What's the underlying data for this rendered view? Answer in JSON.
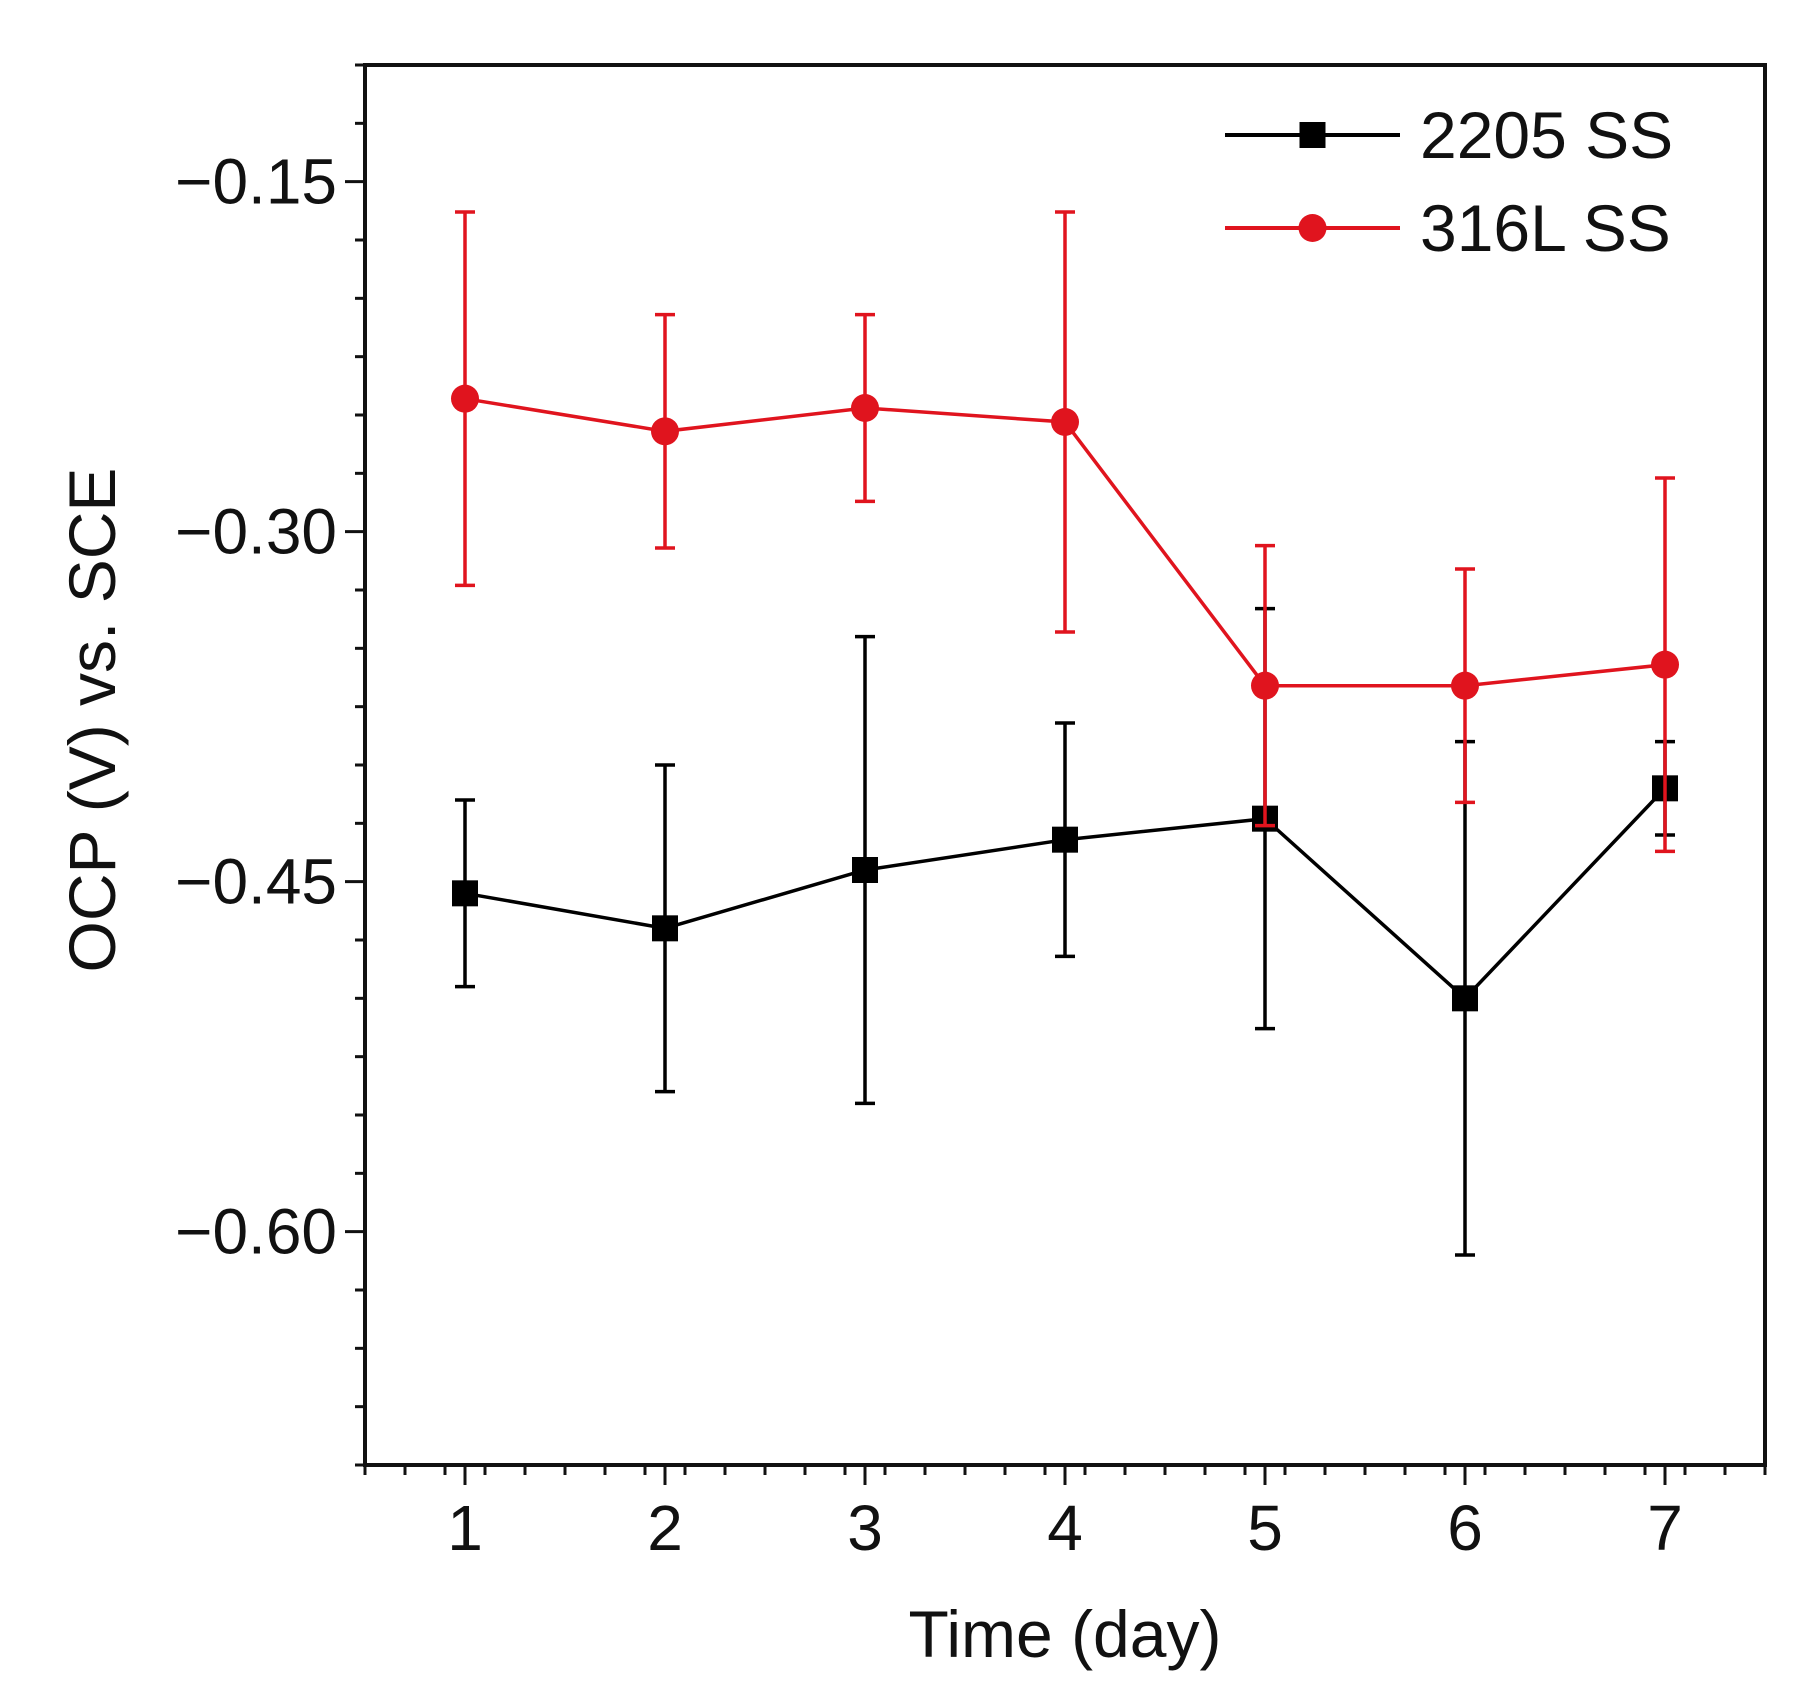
{
  "chart_data": {
    "type": "line",
    "title": "",
    "xlabel": "Time (day)",
    "ylabel": "OCP (V) vs. SCE",
    "x": [
      1,
      2,
      3,
      4,
      5,
      6,
      7
    ],
    "xlim": [
      0.5,
      7.5
    ],
    "ylim": [
      -0.7,
      -0.1
    ],
    "x_ticks": [
      1,
      2,
      3,
      4,
      5,
      6,
      7
    ],
    "x_tick_labels": [
      "1",
      "2",
      "3",
      "4",
      "5",
      "6",
      "7"
    ],
    "y_ticks": [
      -0.15,
      -0.3,
      -0.45,
      -0.6
    ],
    "y_tick_labels": [
      "−0.15",
      "−0.30",
      "−0.45",
      "−0.60"
    ],
    "grid": false,
    "legend_position": "top-right",
    "series": [
      {
        "name": "2205 SS",
        "color": "#000000",
        "marker": "square",
        "values": [
          -0.455,
          -0.47,
          -0.445,
          -0.432,
          -0.423,
          -0.5,
          -0.41
        ],
        "error": [
          0.04,
          0.07,
          0.1,
          0.05,
          0.09,
          0.11,
          0.02
        ]
      },
      {
        "name": "316L SS",
        "color": "#e0141e",
        "marker": "circle",
        "values": [
          -0.243,
          -0.257,
          -0.247,
          -0.253,
          -0.366,
          -0.366,
          -0.357
        ],
        "error": [
          0.08,
          0.05,
          0.04,
          0.09,
          0.06,
          0.05,
          0.08
        ]
      }
    ]
  }
}
